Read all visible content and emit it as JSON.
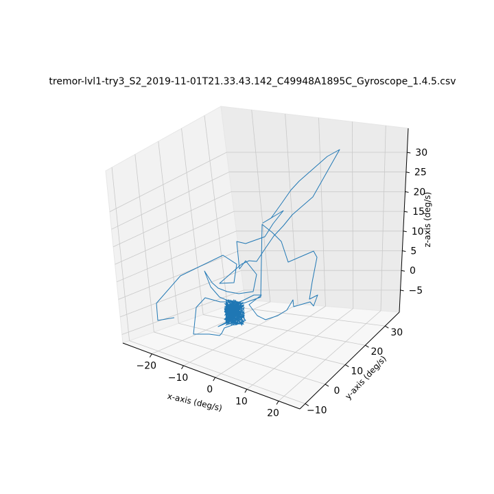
{
  "chart_data": {
    "type": "line",
    "projection": "3d",
    "title": "tremor-lvl1-try3_S2_2019-11-01T21.33.43.142_C49948A1895C_Gyroscope_1.4.5.csv",
    "xlabel": "x-axis (deg/s)",
    "ylabel": "y-axis (deg/s)",
    "zlabel": "z-axis (deg/s)",
    "x_ticks": [
      "−20",
      "−10",
      "0",
      "10",
      "20"
    ],
    "y_ticks": [
      "−10",
      "0",
      "10",
      "20",
      "30"
    ],
    "z_ticks": [
      "−5",
      "0",
      "5",
      "10",
      "15",
      "20",
      "25",
      "30"
    ],
    "grid": true,
    "line_color": "#1f77b4",
    "series": [
      {
        "points_projected_image": [
          [
            254,
            463
          ],
          [
            230,
            467
          ],
          [
            228,
            442
          ],
          [
            263,
            402
          ],
          [
            325,
            372
          ],
          [
            345,
            385
          ],
          [
            341,
            412
          ],
          [
            320,
            413
          ],
          [
            352,
            385
          ],
          [
            363,
            380
          ],
          [
            374,
            381
          ],
          [
            386,
            363
          ],
          [
            399,
            344
          ],
          [
            413,
            329
          ],
          [
            426,
            313
          ],
          [
            441,
            300
          ],
          [
            456,
            287
          ],
          [
            495,
            218
          ],
          [
            477,
            228
          ],
          [
            436,
            264
          ],
          [
            424,
            277
          ],
          [
            410,
            297
          ],
          [
            395,
            318
          ],
          [
            383,
            325
          ],
          [
            413,
            307
          ],
          [
            398,
            326
          ],
          [
            386,
            345
          ],
          [
            358,
            355
          ],
          [
            345,
            352
          ],
          [
            349,
            392
          ],
          [
            358,
            380
          ],
          [
            374,
            400
          ],
          [
            369,
            425
          ],
          [
            348,
            428
          ],
          [
            331,
            425
          ],
          [
            318,
            420
          ],
          [
            309,
            412
          ],
          [
            298,
            395
          ],
          [
            307,
            418
          ],
          [
            320,
            433
          ],
          [
            337,
            440
          ],
          [
            349,
            455
          ],
          [
            358,
            467
          ],
          [
            341,
            473
          ],
          [
            327,
            478
          ],
          [
            323,
            486
          ],
          [
            320,
            489
          ],
          [
            305,
            487
          ],
          [
            282,
            487
          ],
          [
            286,
            448
          ],
          [
            299,
            434
          ],
          [
            321,
            440
          ],
          [
            350,
            440
          ],
          [
            370,
            430
          ],
          [
            381,
            430
          ],
          [
            363,
            444
          ],
          [
            375,
            460
          ],
          [
            387,
            466
          ],
          [
            405,
            460
          ],
          [
            418,
            452
          ],
          [
            427,
            437
          ],
          [
            428,
            447
          ],
          [
            452,
            440
          ],
          [
            457,
            446
          ],
          [
            463,
            430
          ],
          [
            451,
            436
          ],
          [
            455,
            411
          ],
          [
            462,
            375
          ],
          [
            457,
            366
          ],
          [
            420,
            382
          ],
          [
            410,
            352
          ],
          [
            397,
            339
          ],
          [
            382,
            327
          ],
          [
            380,
            433
          ],
          [
            341,
            447
          ],
          [
            333,
            468
          ],
          [
            318,
            476
          ],
          [
            325,
            473
          ],
          [
            336,
            468
          ]
        ]
      }
    ]
  }
}
